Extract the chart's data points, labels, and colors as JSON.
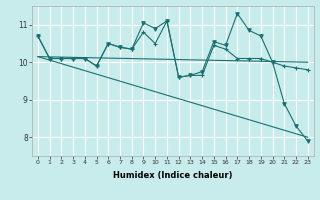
{
  "xlabel": "Humidex (Indice chaleur)",
  "background_color": "#c8ecec",
  "grid_color": "#ffffff",
  "line_color": "#1a7070",
  "x_values": [
    0,
    1,
    2,
    3,
    4,
    5,
    6,
    7,
    8,
    9,
    10,
    11,
    12,
    13,
    14,
    15,
    16,
    17,
    18,
    19,
    20,
    21,
    22,
    23
  ],
  "series1": [
    10.7,
    10.1,
    10.1,
    10.1,
    10.1,
    9.9,
    10.5,
    10.4,
    10.35,
    10.8,
    10.5,
    11.1,
    9.6,
    9.65,
    9.65,
    10.45,
    10.35,
    10.1,
    10.1,
    10.1,
    10.0,
    9.9,
    9.85,
    9.8
  ],
  "series2": [
    10.7,
    10.1,
    10.1,
    10.1,
    10.1,
    9.9,
    10.5,
    10.4,
    10.35,
    11.05,
    10.9,
    11.1,
    9.6,
    9.65,
    9.75,
    10.55,
    10.45,
    11.3,
    10.85,
    10.7,
    10.0,
    8.9,
    8.3,
    7.9
  ],
  "trend1_x": [
    0,
    23
  ],
  "trend1_y": [
    10.15,
    10.0
  ],
  "trend2_x": [
    0,
    23
  ],
  "trend2_y": [
    10.15,
    8.0
  ],
  "ylim": [
    7.5,
    11.5
  ],
  "yticks": [
    8,
    9,
    10,
    11
  ],
  "xticks": [
    0,
    1,
    2,
    3,
    4,
    5,
    6,
    7,
    8,
    9,
    10,
    11,
    12,
    13,
    14,
    15,
    16,
    17,
    18,
    19,
    20,
    21,
    22,
    23
  ]
}
